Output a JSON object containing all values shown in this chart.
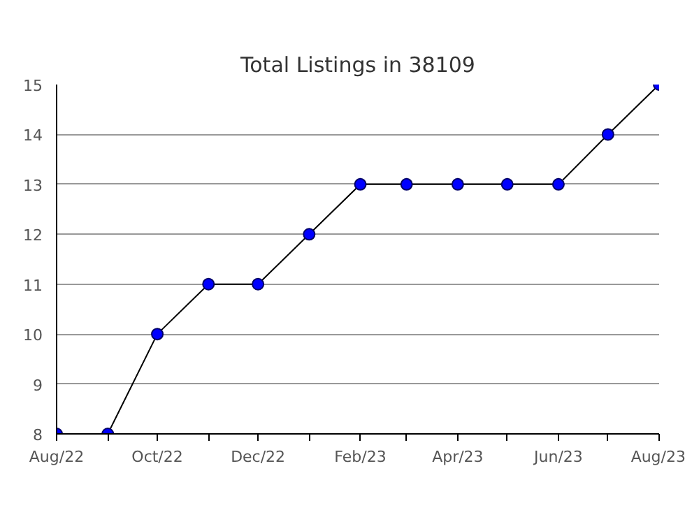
{
  "chart_data": {
    "type": "line",
    "title": "Total Listings in 38109",
    "x": [
      "2022-08",
      "2022-09",
      "2022-10",
      "2022-11",
      "2022-12",
      "2023-01",
      "2023-02",
      "2023-03",
      "2023-04",
      "2023-05",
      "2023-06",
      "2023-07",
      "2023-08"
    ],
    "series": [
      {
        "color": "#0000ff",
        "values": [
          8,
          8,
          10,
          11,
          11,
          12,
          13,
          13,
          13,
          13,
          13,
          14,
          15
        ]
      }
    ],
    "xlim": [
      "2022-08",
      "2023-08"
    ],
    "xticks": [
      {
        "value": "2022-08",
        "label": "Aug/22"
      },
      {
        "value": "2022-09",
        "label": null
      },
      {
        "value": "2022-10",
        "label": "Oct/22"
      },
      {
        "value": "2022-11",
        "label": null
      },
      {
        "value": "2022-12",
        "label": "Dec/22"
      },
      {
        "value": "2023-01",
        "label": null
      },
      {
        "value": "2023-02",
        "label": "Feb/23"
      },
      {
        "value": "2023-03",
        "label": null
      },
      {
        "value": "2023-04",
        "label": "Apr/23"
      },
      {
        "value": "2023-05",
        "label": null
      },
      {
        "value": "2023-06",
        "label": "Jun/23"
      },
      {
        "value": "2023-07",
        "label": null
      },
      {
        "value": "2023-08",
        "label": "Aug/23"
      }
    ],
    "ylim": [
      8,
      15
    ],
    "yticks": [
      8,
      9,
      10,
      11,
      12,
      13,
      14,
      15
    ],
    "grid": "y",
    "marker": "circle",
    "line_style": "solid"
  }
}
